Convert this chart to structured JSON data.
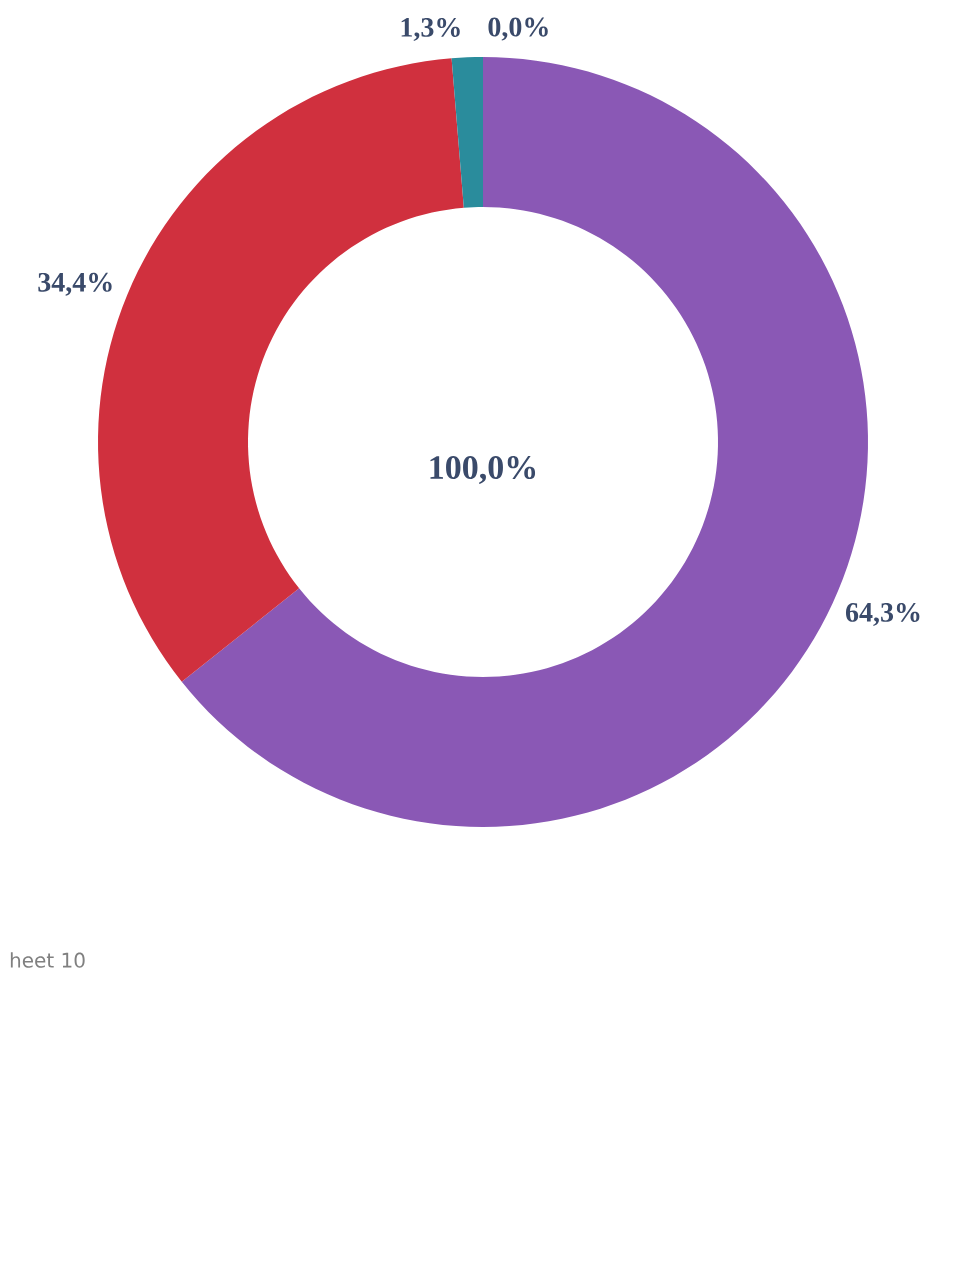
{
  "chart_data": {
    "type": "donut",
    "categories": [
      null,
      null,
      null,
      null
    ],
    "values": [
      0.0,
      64.3,
      34.4,
      1.3
    ],
    "colors": [
      "#5a1f78",
      "#8a58b5",
      "#d0303e",
      "#2a8c9c"
    ],
    "value_labels": [
      "0,0%",
      "64,3%",
      "34,4%",
      "1,3%"
    ],
    "annotations": [
      "100,0%",
      "heet 10"
    ]
  }
}
